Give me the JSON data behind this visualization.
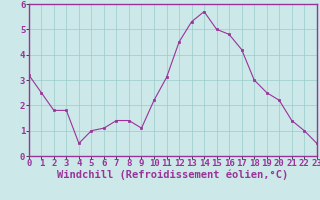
{
  "x": [
    0,
    1,
    2,
    3,
    4,
    5,
    6,
    7,
    8,
    9,
    10,
    11,
    12,
    13,
    14,
    15,
    16,
    17,
    18,
    19,
    20,
    21,
    22,
    23
  ],
  "y": [
    3.2,
    2.5,
    1.8,
    1.8,
    0.5,
    1.0,
    1.1,
    1.4,
    1.4,
    1.1,
    2.2,
    3.1,
    4.5,
    5.3,
    5.7,
    5.0,
    4.8,
    4.2,
    3.0,
    2.5,
    2.2,
    1.4,
    1.0,
    0.5
  ],
  "xlim": [
    0,
    23
  ],
  "ylim": [
    0,
    6
  ],
  "yticks": [
    0,
    1,
    2,
    3,
    4,
    5,
    6
  ],
  "xticks": [
    0,
    1,
    2,
    3,
    4,
    5,
    6,
    7,
    8,
    9,
    10,
    11,
    12,
    13,
    14,
    15,
    16,
    17,
    18,
    19,
    20,
    21,
    22,
    23
  ],
  "line_color": "#993399",
  "marker_color": "#993399",
  "bg_color": "#cce8e8",
  "plot_bg_color": "#cce8e8",
  "grid_color": "#99cccc",
  "spine_color": "#993399",
  "xlabel": "Windchill (Refroidissement éolien,°C)",
  "tick_fontsize": 6.5,
  "label_fontsize": 7.5
}
